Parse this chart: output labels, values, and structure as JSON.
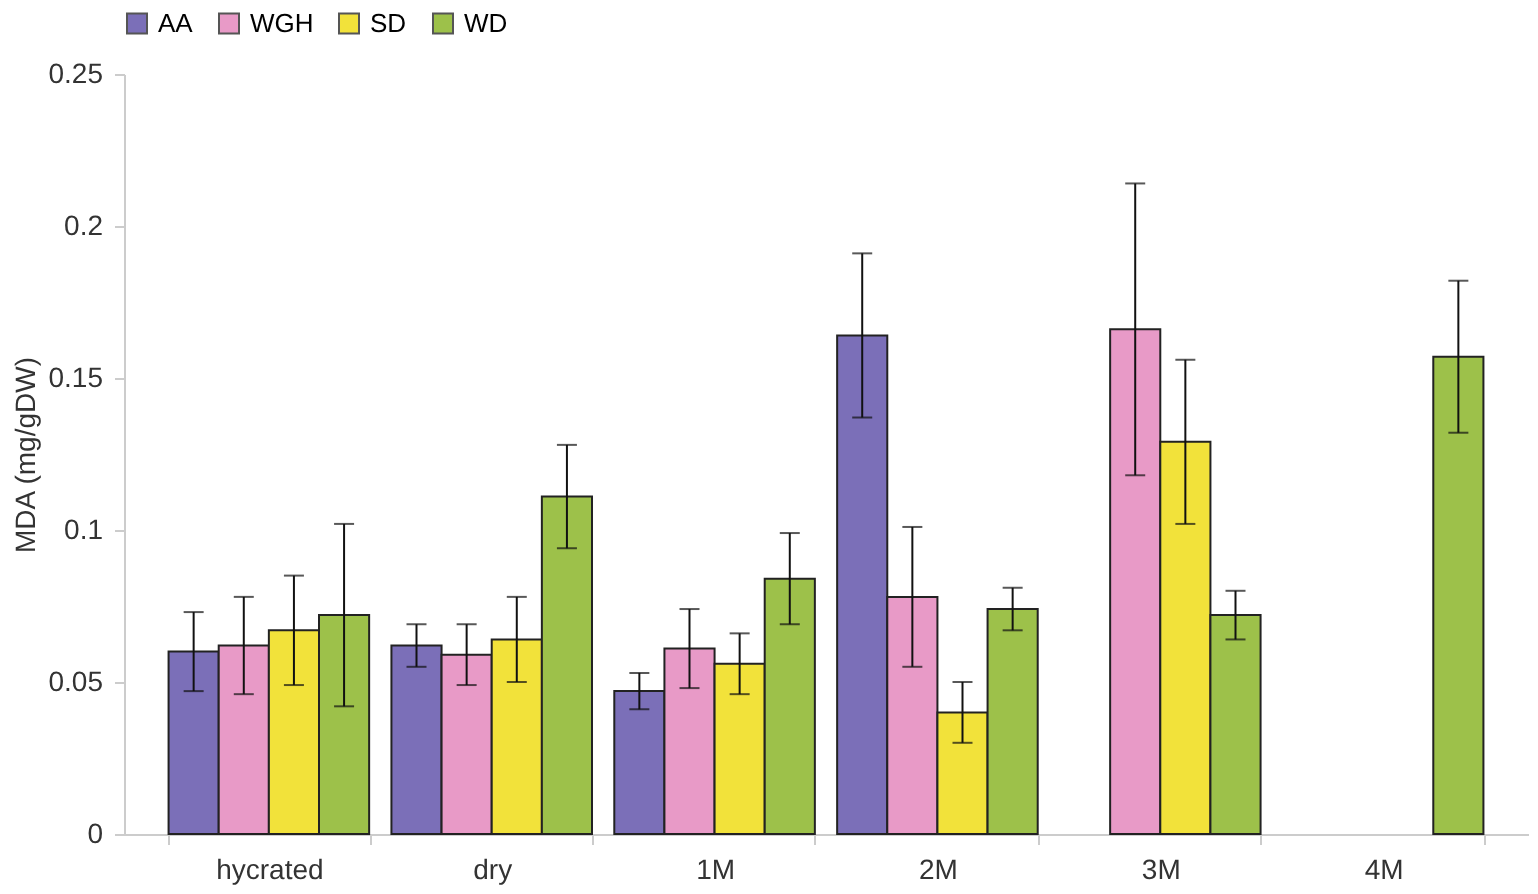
{
  "chart_data": {
    "type": "bar",
    "ylabel": "MDA (mg/gDW)",
    "categories": [
      "hycrated",
      "dry",
      "1M",
      "2M",
      "3M",
      "4M"
    ],
    "series": [
      {
        "name": "AA",
        "color": "#7b6fb8",
        "values": [
          0.06,
          0.062,
          0.047,
          0.164,
          null,
          null
        ],
        "errors": [
          0.013,
          0.007,
          0.006,
          0.027,
          null,
          null
        ]
      },
      {
        "name": "WGH",
        "color": "#e89ac7",
        "values": [
          0.062,
          0.059,
          0.061,
          0.078,
          0.166,
          null
        ],
        "errors": [
          0.016,
          0.01,
          0.013,
          0.023,
          0.048,
          null
        ]
      },
      {
        "name": "SD",
        "color": "#f2e23a",
        "values": [
          0.067,
          0.064,
          0.056,
          0.04,
          0.129,
          null
        ],
        "errors": [
          0.018,
          0.014,
          0.01,
          0.01,
          0.027,
          null
        ]
      },
      {
        "name": "WD",
        "color": "#9dc14a",
        "values": [
          0.072,
          0.111,
          0.084,
          0.074,
          0.072,
          0.157
        ],
        "errors": [
          0.03,
          0.017,
          0.015,
          0.007,
          0.008,
          0.025
        ]
      }
    ],
    "ylim": [
      0,
      0.25
    ],
    "yticks": [
      0,
      0.05,
      0.1,
      0.15,
      0.2,
      0.25
    ],
    "grid": false,
    "legend": "top"
  }
}
